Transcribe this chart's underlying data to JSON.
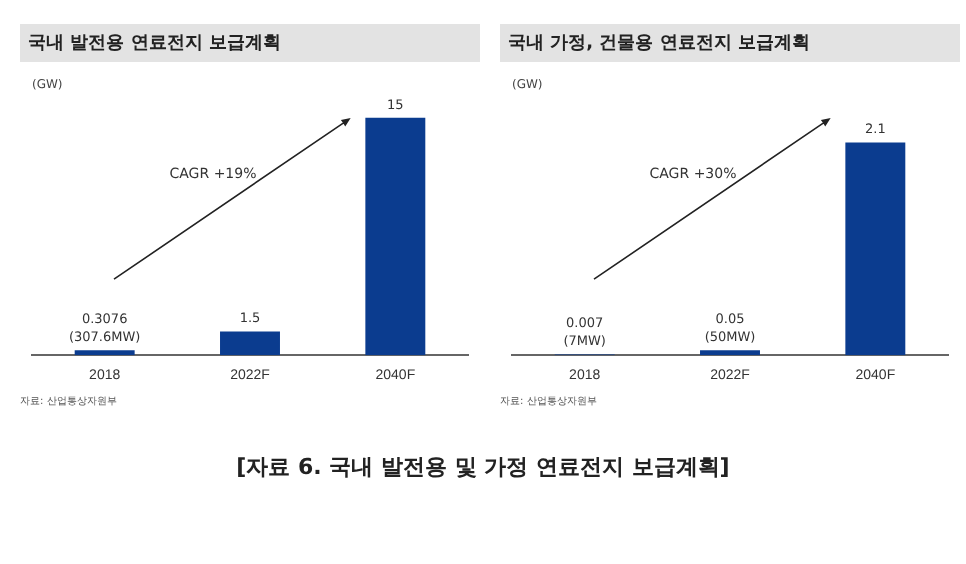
{
  "chart_data": [
    {
      "type": "bar",
      "title": "국내 발전용 연료전지 보급계획",
      "ylabel": "(GW)",
      "categories": [
        "2018",
        "2022F",
        "2040F"
      ],
      "values": [
        0.3076,
        1.5,
        15
      ],
      "color": "#0b3c8f",
      "value_labels": [
        "0.3076\n(307.6MW)",
        "1.5",
        "15"
      ],
      "grid": false,
      "legend": false,
      "annotations": [
        "CAGR +19%",
        "자료: 산업통상자원부"
      ]
    },
    {
      "type": "bar",
      "title": "국내 가정, 건물용 연료전지 보급계획",
      "ylabel": "(GW)",
      "categories": [
        "2018",
        "2022F",
        "2040F"
      ],
      "values": [
        0.007,
        0.05,
        2.1
      ],
      "color": "#0b3c8f",
      "value_labels": [
        "0.007\n(7MW)",
        "0.05\n(50MW)",
        "2.1"
      ],
      "grid": false,
      "legend": false,
      "annotations": [
        "CAGR +30%",
        "자료: 산업통상자원부",
        "[자료 6. 국내 발전용 및 가정 연료전지 보급계획]"
      ]
    }
  ]
}
